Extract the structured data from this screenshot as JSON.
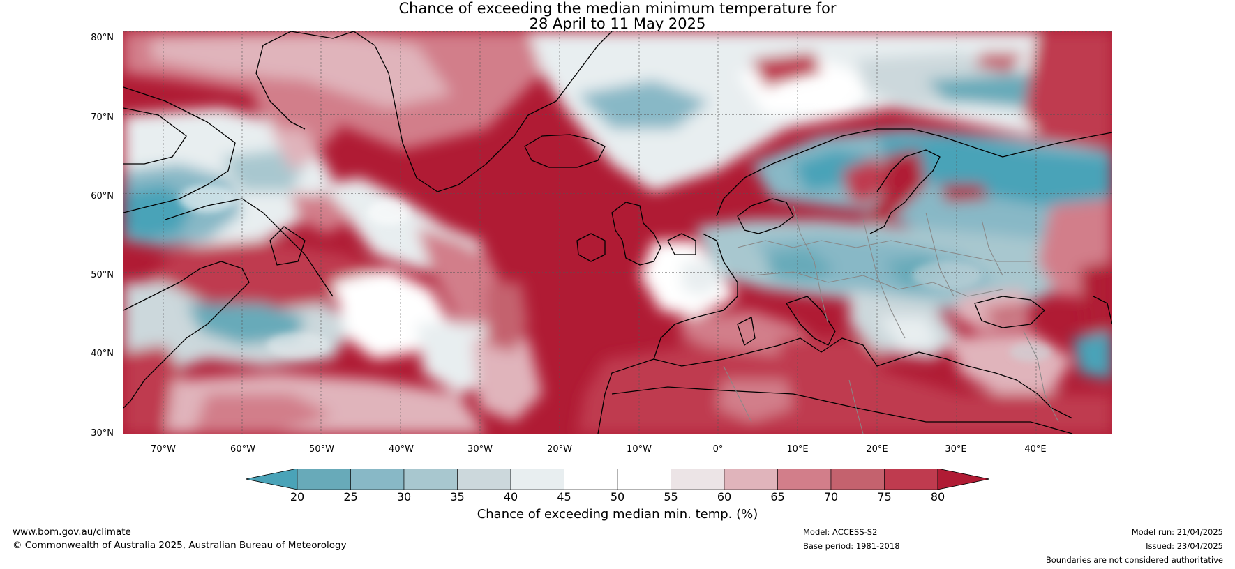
{
  "title": {
    "line1": "Chance of exceeding the median minimum temperature for",
    "line2": "28 April to 11 May 2025"
  },
  "map": {
    "lat_labels": [
      "80°N",
      "70°N",
      "60°N",
      "50°N",
      "40°N",
      "30°N"
    ],
    "lon_labels": [
      "70°W",
      "60°W",
      "50°W",
      "40°W",
      "30°W",
      "20°W",
      "10°W",
      "0°",
      "10°E",
      "20°E",
      "30°E",
      "40°E"
    ]
  },
  "colorbar": {
    "ticks": [
      "20",
      "25",
      "30",
      "35",
      "40",
      "45",
      "50",
      "55",
      "60",
      "65",
      "70",
      "75",
      "80"
    ],
    "label": "Chance of exceeding median min. temp. (%)",
    "colors": [
      "#4aa3b8",
      "#68aab9",
      "#88b8c6",
      "#a8c7cf",
      "#ccd8dc",
      "#e8eef0",
      "#ffffff",
      "#ffffff",
      "#ece4e6",
      "#e0b4bb",
      "#d27e8a",
      "#c4626e",
      "#bf3b4f",
      "#b01b34"
    ],
    "under_color": "#4aa3b8",
    "over_color": "#b01b34"
  },
  "footer": {
    "website": "www.bom.gov.au/climate",
    "copyright": "© Commonwealth of Australia 2025, Australian Bureau of Meteorology",
    "model": "Model: ACCESS-S2",
    "base_period": "Base period: 1981-2018",
    "model_run": "Model run: 21/04/2025",
    "issued": "Issued: 23/04/2025",
    "disclaimer": "Boundaries are not considered authoritative"
  }
}
